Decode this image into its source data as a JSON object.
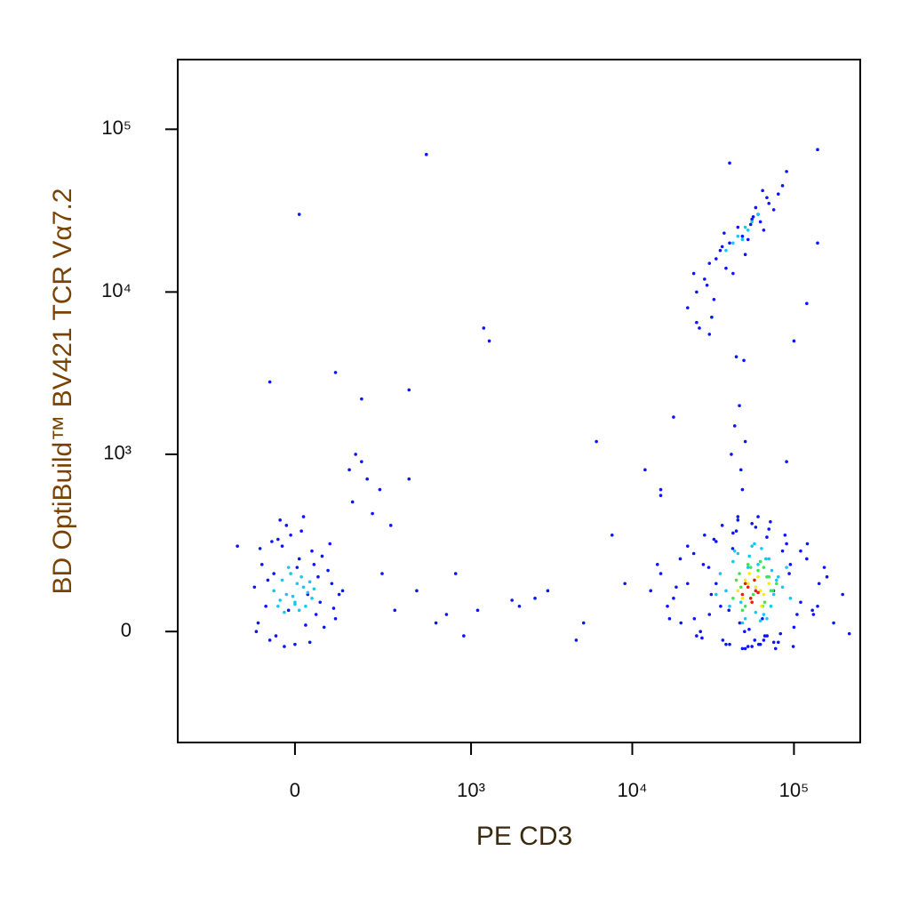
{
  "chart_data": {
    "type": "scatter",
    "xlabel": "PE CD3",
    "ylabel": "BD OptiBuild™ BV421 TCR Vα7.2",
    "xscale": "biexponential",
    "yscale": "biexponential",
    "xlim": [
      -420,
      257000
    ],
    "ylim": [
      -377,
      268000
    ],
    "xticks": [
      0,
      {
        "value": 1000,
        "label": "10³"
      },
      {
        "value": 10000,
        "label": "10⁴"
      },
      {
        "value": 100000,
        "label": "10⁵"
      }
    ],
    "yticks": [
      0,
      {
        "value": 1000,
        "label": "10³"
      },
      {
        "value": 10000,
        "label": "10⁴"
      },
      {
        "value": 100000,
        "label": "10⁵"
      }
    ],
    "series": [
      {
        "color": "#0a14ff",
        "x": [
          -90,
          -70,
          -50,
          -30,
          -10,
          10,
          30,
          50,
          70,
          90,
          -80,
          -60,
          -40,
          -20,
          0,
          20,
          40,
          60,
          80,
          100,
          -100,
          -85,
          -45,
          -15,
          15,
          45,
          85,
          110,
          -65,
          -25,
          25,
          65,
          -95,
          -55,
          5,
          55,
          95,
          -35,
          35,
          120,
          150,
          200,
          250,
          300,
          -150,
          180,
          220,
          140,
          160,
          260,
          320,
          400,
          450,
          600,
          800,
          1100,
          1300,
          2000,
          3000,
          4500,
          6000,
          7500,
          12000,
          15000,
          2500,
          900,
          5000,
          1800,
          700,
          400,
          1200,
          9000,
          520,
          10,
          -60,
          100,
          180,
          15000,
          18000,
          20000,
          22000,
          25000,
          28000,
          30000,
          33000,
          36000,
          40000,
          45000,
          50000,
          55000,
          60000,
          65000,
          70000,
          80000,
          90000,
          100000,
          120000,
          140000,
          160000,
          200000,
          13000,
          17000,
          24000,
          27000,
          32000,
          38000,
          42000,
          48000,
          52000,
          58000,
          62000,
          68000,
          75000,
          85000,
          95000,
          110000,
          130000,
          16500,
          19800,
          22000,
          24200,
          27500,
          30800,
          33000,
          36300,
          39600,
          44000,
          49500,
          55000,
          60500,
          66000,
          71500,
          77000,
          88000,
          99000,
          110000,
          132000,
          154000,
          176000,
          220000,
          14300,
          18700,
          26400,
          29700,
          35200,
          41800,
          46200,
          52800,
          57200,
          63800,
          68200,
          74800,
          82500,
          93500,
          104500,
          121000,
          143000,
          22000,
          25000,
          28000,
          30000,
          32000,
          35000,
          38000,
          40000,
          42000,
          45000,
          48000,
          50000,
          55000,
          60000,
          65000,
          70000,
          75000,
          80000,
          85000,
          90000,
          26000,
          29000,
          33000,
          36000,
          44000,
          52000,
          58000,
          62000,
          68000,
          24000,
          31000,
          37000,
          46000,
          54000,
          43000,
          47000,
          41000,
          49000,
          56000,
          64000,
          48000,
          50000,
          45000,
          140000,
          40000,
          140000,
          120000,
          30000,
          25000,
          100000,
          90000,
          18000,
          15000
        ],
        "values": [
          20,
          60,
          150,
          250,
          300,
          200,
          90,
          40,
          10,
          120,
          180,
          -20,
          280,
          350,
          -30,
          400,
          230,
          70,
          160,
          30,
          110,
          240,
          -10,
          50,
          320,
          180,
          260,
          90,
          130,
          -35,
          15,
          210,
          0,
          270,
          170,
          140,
          55,
          380,
          -25,
          100,
          500,
          700,
          600,
          350,
          250,
          900,
          420,
          800,
          1000,
          150,
          50,
          700,
          100,
          20,
          150,
          50,
          5000,
          60,
          100,
          -20,
          1200,
          300,
          800,
          550,
          80,
          -10,
          20,
          75,
          40,
          2500,
          6000,
          120,
          70000,
          30000,
          2800,
          3200,
          2200,
          150,
          80,
          20,
          250,
          -10,
          300,
          40,
          120,
          350,
          -30,
          380,
          -40,
          -35,
          400,
          -20,
          330,
          -25,
          260,
          10,
          200,
          60,
          140,
          90,
          100,
          30,
          220,
          -15,
          280,
          -30,
          310,
          -40,
          -35,
          340,
          -30,
          290,
          -25,
          230,
          180,
          70,
          50,
          60,
          200,
          120,
          30,
          180,
          90,
          270,
          -20,
          50,
          320,
          0,
          360,
          -30,
          -10,
          370,
          -40,
          300,
          -35,
          230,
          40,
          170,
          20,
          -5,
          180,
          110,
          0,
          170,
          60,
          240,
          20,
          5,
          -20,
          30,
          -10,
          100,
          -5,
          150,
          40,
          260,
          120,
          8000,
          10000,
          12000,
          15000,
          9000,
          18000,
          14000,
          20000,
          13000,
          25000,
          22000,
          17000,
          28000,
          30000,
          24000,
          35000,
          32000,
          40000,
          45000,
          55000,
          6000,
          11000,
          16000,
          19000,
          4000,
          21000,
          33000,
          27000,
          38000,
          13000,
          7000,
          23000,
          2000,
          26000,
          1500,
          800,
          1000,
          3800,
          29000,
          42000,
          600,
          1200,
          400,
          75000,
          62000,
          20000,
          8500,
          5500,
          6500,
          5000,
          900,
          1700,
          600
        ]
      },
      {
        "color": "#14c8f0",
        "x": [
          -40,
          -20,
          0,
          20,
          40,
          -30,
          10,
          30,
          -10,
          -50,
          5,
          25,
          -35,
          15,
          -5,
          45,
          -25,
          35,
          -15,
          0,
          35000,
          40000,
          45000,
          50000,
          55000,
          60000,
          65000,
          70000,
          75000,
          80000,
          38000,
          43000,
          48000,
          53000,
          58000,
          63000,
          68000,
          73000,
          85000,
          95000,
          42000,
          47000,
          52000,
          57000,
          62000,
          67000,
          72000,
          78000,
          33000,
          90000,
          38000,
          42000,
          45000,
          48000,
          50000,
          52000,
          55000,
          60000
        ],
        "values": [
          60,
          90,
          70,
          110,
          80,
          130,
          50,
          95,
          150,
          100,
          120,
          60,
          75,
          140,
          85,
          105,
          45,
          125,
          170,
          65,
          150,
          60,
          220,
          30,
          250,
          180,
          40,
          200,
          90,
          140,
          100,
          230,
          20,
          210,
          45,
          240,
          30,
          160,
          110,
          80,
          190,
          70,
          170,
          260,
          25,
          200,
          60,
          130,
          90,
          170,
          18000,
          20000,
          22000,
          21000,
          25000,
          24000,
          27000,
          30000
        ]
      },
      {
        "color": "#3ce650",
        "x": [
          42000,
          46000,
          50000,
          54000,
          58000,
          62000,
          66000,
          70000,
          74000,
          78000,
          44000,
          48000,
          52000,
          56000,
          60000,
          64000,
          68000,
          72000,
          47000,
          65000
        ],
        "values": [
          80,
          150,
          60,
          170,
          110,
          190,
          70,
          140,
          100,
          120,
          130,
          50,
          180,
          90,
          160,
          60,
          140,
          100,
          110,
          170
        ]
      },
      {
        "color": "#f5f000",
        "x": [
          45000,
          50000,
          55000,
          60000,
          65000,
          70000,
          48000,
          53000,
          58000,
          63000,
          52000,
          62000
        ],
        "values": [
          100,
          130,
          70,
          140,
          90,
          120,
          80,
          150,
          110,
          60,
          120,
          100
        ]
      },
      {
        "color": "#ff1400",
        "x": [
          48000,
          52000,
          55000,
          58000,
          50000,
          54000,
          57000,
          60000
        ],
        "values": [
          90,
          110,
          70,
          100,
          120,
          80,
          130,
          95
        ]
      }
    ]
  }
}
